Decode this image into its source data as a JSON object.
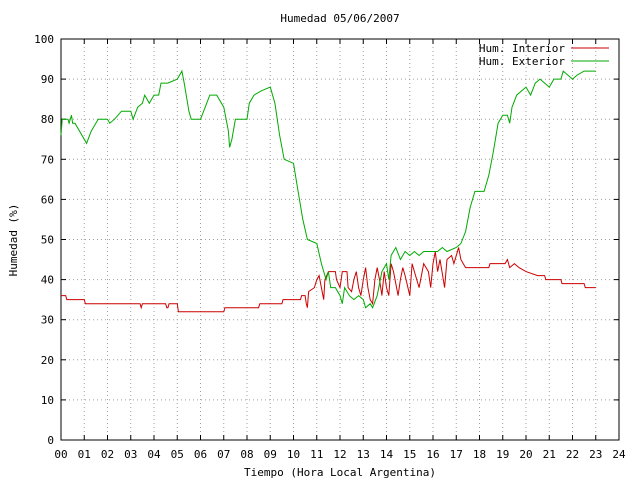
{
  "chart_data": {
    "type": "line",
    "title": "Humedad 05/06/2007",
    "xlabel": "Tiempo (Hora Local Argentina)",
    "ylabel": "Humedad (%)",
    "xlim": [
      0,
      24
    ],
    "ylim": [
      0,
      100
    ],
    "grid": true,
    "legend_position": "top-right",
    "x_ticks": [
      "00",
      "01",
      "02",
      "03",
      "04",
      "05",
      "06",
      "07",
      "08",
      "09",
      "10",
      "11",
      "12",
      "13",
      "14",
      "15",
      "16",
      "17",
      "18",
      "19",
      "20",
      "21",
      "22",
      "23",
      "24"
    ],
    "y_ticks": [
      "0",
      "10",
      "20",
      "30",
      "40",
      "50",
      "60",
      "70",
      "80",
      "90",
      "100"
    ],
    "series": [
      {
        "name": "Hum. Interior",
        "color": "#cc0000",
        "points": [
          [
            0,
            36
          ],
          [
            0.2,
            36
          ],
          [
            0.25,
            35
          ],
          [
            1.0,
            35
          ],
          [
            1.05,
            34
          ],
          [
            3.4,
            34
          ],
          [
            3.45,
            33
          ],
          [
            3.5,
            34
          ],
          [
            4.5,
            34
          ],
          [
            4.55,
            33
          ],
          [
            4.6,
            33
          ],
          [
            4.65,
            34
          ],
          [
            5.0,
            34
          ],
          [
            5.05,
            32
          ],
          [
            6.0,
            32
          ],
          [
            7.0,
            32
          ],
          [
            7.05,
            33
          ],
          [
            8.0,
            33
          ],
          [
            8.05,
            33
          ],
          [
            8.5,
            33
          ],
          [
            8.55,
            34
          ],
          [
            9.0,
            34
          ],
          [
            9.5,
            34
          ],
          [
            9.55,
            35
          ],
          [
            10.0,
            35
          ],
          [
            10.3,
            35
          ],
          [
            10.35,
            36
          ],
          [
            10.5,
            36
          ],
          [
            10.55,
            34
          ],
          [
            10.6,
            33
          ],
          [
            10.65,
            37
          ],
          [
            10.9,
            38
          ],
          [
            11.0,
            40
          ],
          [
            11.1,
            41
          ],
          [
            11.2,
            38
          ],
          [
            11.3,
            35
          ],
          [
            11.35,
            40
          ],
          [
            11.5,
            42
          ],
          [
            11.8,
            42
          ],
          [
            11.85,
            40
          ],
          [
            12.0,
            38
          ],
          [
            12.1,
            42
          ],
          [
            12.3,
            42
          ],
          [
            12.35,
            38
          ],
          [
            12.5,
            37
          ],
          [
            12.6,
            40
          ],
          [
            12.7,
            42
          ],
          [
            12.8,
            38
          ],
          [
            12.9,
            36
          ],
          [
            13.0,
            40
          ],
          [
            13.1,
            43
          ],
          [
            13.2,
            38
          ],
          [
            13.3,
            35
          ],
          [
            13.4,
            34
          ],
          [
            13.5,
            40
          ],
          [
            13.6,
            43
          ],
          [
            13.7,
            40
          ],
          [
            13.8,
            36
          ],
          [
            13.9,
            42
          ],
          [
            14.0,
            38
          ],
          [
            14.1,
            36
          ],
          [
            14.2,
            44
          ],
          [
            14.3,
            42
          ],
          [
            14.5,
            36
          ],
          [
            14.6,
            40
          ],
          [
            14.7,
            43
          ],
          [
            14.8,
            41
          ],
          [
            15.0,
            36
          ],
          [
            15.1,
            44
          ],
          [
            15.2,
            42
          ],
          [
            15.4,
            38
          ],
          [
            15.6,
            44
          ],
          [
            15.8,
            42
          ],
          [
            15.9,
            38
          ],
          [
            16.0,
            44
          ],
          [
            16.1,
            47
          ],
          [
            16.2,
            42
          ],
          [
            16.3,
            45
          ],
          [
            16.5,
            38
          ],
          [
            16.6,
            45
          ],
          [
            16.8,
            46
          ],
          [
            16.9,
            44
          ],
          [
            17.0,
            46
          ],
          [
            17.1,
            48
          ],
          [
            17.2,
            45
          ],
          [
            17.3,
            44
          ],
          [
            17.4,
            43
          ],
          [
            18.0,
            43
          ],
          [
            18.4,
            43
          ],
          [
            18.45,
            44
          ],
          [
            19.0,
            44
          ],
          [
            19.1,
            44
          ],
          [
            19.2,
            45
          ],
          [
            19.3,
            43
          ],
          [
            19.5,
            44
          ],
          [
            19.7,
            43
          ],
          [
            20.0,
            42
          ],
          [
            20.5,
            41
          ],
          [
            20.8,
            41
          ],
          [
            20.85,
            40
          ],
          [
            21.5,
            40
          ],
          [
            21.55,
            39
          ],
          [
            22.0,
            39
          ],
          [
            22.5,
            39
          ],
          [
            22.55,
            38
          ],
          [
            23.0,
            38
          ]
        ]
      },
      {
        "name": "Hum. Exterior",
        "color": "#00aa00",
        "points": [
          [
            0,
            76
          ],
          [
            0.05,
            80
          ],
          [
            0.3,
            80
          ],
          [
            0.35,
            79
          ],
          [
            0.45,
            81
          ],
          [
            0.5,
            79
          ],
          [
            0.6,
            79
          ],
          [
            0.7,
            78
          ],
          [
            0.9,
            76
          ],
          [
            1.1,
            74
          ],
          [
            1.3,
            77
          ],
          [
            1.6,
            80
          ],
          [
            2.0,
            80
          ],
          [
            2.1,
            79
          ],
          [
            2.3,
            80
          ],
          [
            2.6,
            82
          ],
          [
            3.0,
            82
          ],
          [
            3.1,
            80
          ],
          [
            3.3,
            83
          ],
          [
            3.5,
            84
          ],
          [
            3.6,
            86
          ],
          [
            3.8,
            84
          ],
          [
            4.0,
            86
          ],
          [
            4.2,
            86
          ],
          [
            4.3,
            89
          ],
          [
            4.6,
            89
          ],
          [
            5.0,
            90
          ],
          [
            5.2,
            92
          ],
          [
            5.3,
            89
          ],
          [
            5.5,
            82
          ],
          [
            5.6,
            80
          ],
          [
            6.0,
            80
          ],
          [
            6.2,
            83
          ],
          [
            6.4,
            86
          ],
          [
            6.7,
            86
          ],
          [
            6.8,
            85
          ],
          [
            7.0,
            83
          ],
          [
            7.2,
            77
          ],
          [
            7.25,
            73
          ],
          [
            7.35,
            75
          ],
          [
            7.5,
            80
          ],
          [
            8.0,
            80
          ],
          [
            8.1,
            84
          ],
          [
            8.3,
            86
          ],
          [
            8.6,
            87
          ],
          [
            9.0,
            88
          ],
          [
            9.2,
            84
          ],
          [
            9.4,
            76
          ],
          [
            9.6,
            70
          ],
          [
            10.0,
            69
          ],
          [
            10.2,
            62
          ],
          [
            10.4,
            55
          ],
          [
            10.6,
            50
          ],
          [
            11.0,
            49
          ],
          [
            11.2,
            44
          ],
          [
            11.4,
            40
          ],
          [
            11.5,
            42
          ],
          [
            11.6,
            38
          ],
          [
            11.8,
            38
          ],
          [
            12.0,
            36
          ],
          [
            12.1,
            34
          ],
          [
            12.2,
            38
          ],
          [
            12.4,
            36
          ],
          [
            12.6,
            35
          ],
          [
            12.8,
            36
          ],
          [
            13.0,
            35
          ],
          [
            13.1,
            33
          ],
          [
            13.3,
            34
          ],
          [
            13.4,
            33
          ],
          [
            13.6,
            36
          ],
          [
            13.8,
            42
          ],
          [
            14.0,
            44
          ],
          [
            14.1,
            40
          ],
          [
            14.2,
            46
          ],
          [
            14.4,
            48
          ],
          [
            14.6,
            45
          ],
          [
            14.8,
            47
          ],
          [
            15.0,
            46
          ],
          [
            15.2,
            47
          ],
          [
            15.4,
            46
          ],
          [
            15.6,
            47
          ],
          [
            16.0,
            47
          ],
          [
            16.2,
            47
          ],
          [
            16.4,
            48
          ],
          [
            16.6,
            47
          ],
          [
            17.0,
            48
          ],
          [
            17.2,
            49
          ],
          [
            17.4,
            52
          ],
          [
            17.6,
            58
          ],
          [
            17.8,
            62
          ],
          [
            18.2,
            62
          ],
          [
            18.4,
            66
          ],
          [
            18.6,
            72
          ],
          [
            18.8,
            79
          ],
          [
            19.0,
            81
          ],
          [
            19.2,
            81
          ],
          [
            19.3,
            79
          ],
          [
            19.4,
            83
          ],
          [
            19.6,
            86
          ],
          [
            20.0,
            88
          ],
          [
            20.2,
            86
          ],
          [
            20.4,
            89
          ],
          [
            20.6,
            90
          ],
          [
            21.0,
            88
          ],
          [
            21.2,
            90
          ],
          [
            21.5,
            90
          ],
          [
            21.6,
            92
          ],
          [
            22.0,
            90
          ],
          [
            22.2,
            91
          ],
          [
            22.5,
            92
          ],
          [
            23.0,
            92
          ]
        ]
      }
    ]
  }
}
